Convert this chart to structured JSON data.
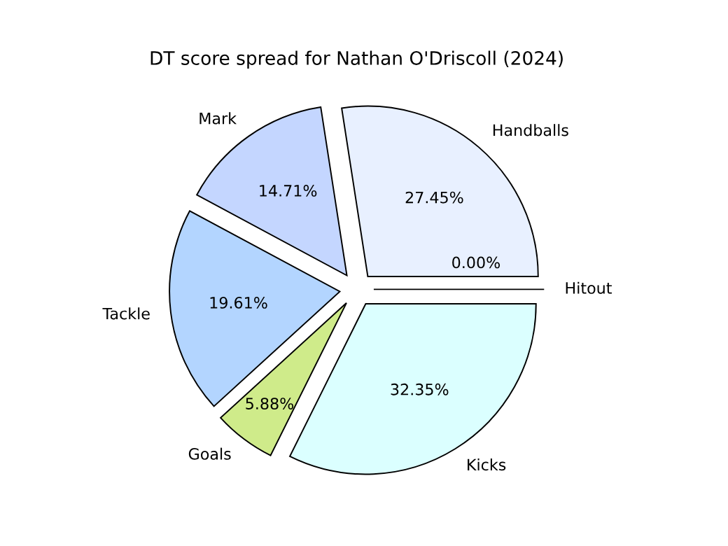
{
  "chart_data": {
    "type": "pie",
    "title": "DT score spread for Nathan O'Driscoll (2024)",
    "categories": [
      "Handballs",
      "Mark",
      "Tackle",
      "Goals",
      "Kicks",
      "Hitout"
    ],
    "values": [
      27.45,
      14.71,
      19.61,
      5.88,
      32.35,
      0.0
    ],
    "value_labels": [
      "27.45%",
      "14.71%",
      "19.61%",
      "5.88%",
      "32.35%",
      "0.00%"
    ],
    "colors": [
      "#e8f0ff",
      "#c4d6ff",
      "#b3d5ff",
      "#cfeb8a",
      "#dbffff",
      "#e8f0ff"
    ],
    "legend": false
  }
}
